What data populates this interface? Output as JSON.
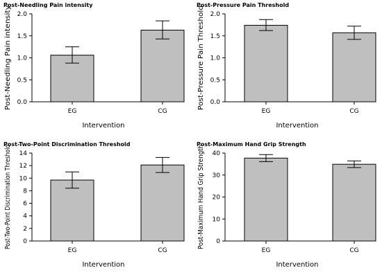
{
  "chart_data": [
    {
      "type": "bar",
      "title": "Post-Needling Pain intensity",
      "xlabel": "Intervention",
      "ylabel": "Post-Needling Pain intensity",
      "categories": [
        "EG",
        "CG"
      ],
      "values": [
        1.06,
        1.63
      ],
      "errors": [
        [
          0.88,
          1.25
        ],
        [
          1.43,
          1.84
        ]
      ],
      "ylim": [
        0,
        2.0
      ],
      "yticks": [
        "0.0",
        "0.5",
        "1.0",
        "1.5",
        "2.0"
      ],
      "ytick_values": [
        0,
        0.5,
        1.0,
        1.5,
        2.0
      ],
      "grid": false
    },
    {
      "type": "bar",
      "title": "Post-Pressure Pain Threshold",
      "xlabel": "Intervention",
      "ylabel": "Post-Pressure Pain Threshold",
      "categories": [
        "EG",
        "CG"
      ],
      "values": [
        1.74,
        1.57
      ],
      "errors": [
        [
          1.62,
          1.87
        ],
        [
          1.42,
          1.72
        ]
      ],
      "ylim": [
        0,
        2.0
      ],
      "yticks": [
        "0.0",
        "0.5",
        "1.0",
        "1.5",
        "2.0"
      ],
      "ytick_values": [
        0,
        0.5,
        1.0,
        1.5,
        2.0
      ],
      "grid": false
    },
    {
      "type": "bar",
      "title": "Post-Two-Point Discrimination Threshold",
      "xlabel": "Intervention",
      "ylabel": "Post-Two-Point Discrimination Threshold",
      "categories": [
        "EG",
        "CG"
      ],
      "values": [
        9.7,
        12.1
      ],
      "errors": [
        [
          8.4,
          11.0
        ],
        [
          10.9,
          13.3
        ]
      ],
      "ylim": [
        0,
        14
      ],
      "yticks": [
        "0",
        "2",
        "4",
        "6",
        "8",
        "10",
        "12",
        "14"
      ],
      "ytick_values": [
        0,
        2,
        4,
        6,
        8,
        10,
        12,
        14
      ],
      "grid": false
    },
    {
      "type": "bar",
      "title": "Post-Maximum Hand Grip Strength",
      "xlabel": "Intervention",
      "ylabel": "Post-Maximum Hand Grip Strength",
      "categories": [
        "EG",
        "CG"
      ],
      "values": [
        37.7,
        34.9
      ],
      "errors": [
        [
          36.1,
          39.3
        ],
        [
          33.4,
          36.4
        ]
      ],
      "ylim": [
        0,
        40
      ],
      "yticks": [
        "0",
        "10",
        "20",
        "30",
        "40"
      ],
      "ytick_values": [
        0,
        10,
        20,
        30,
        40
      ],
      "grid": false
    }
  ]
}
